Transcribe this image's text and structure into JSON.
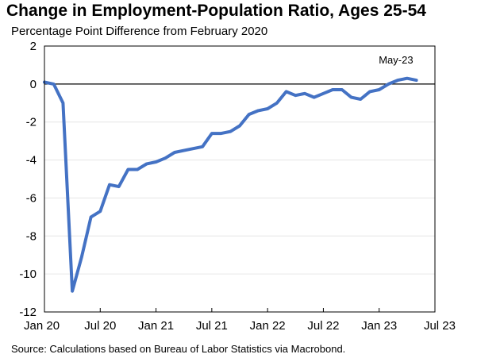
{
  "chart_data": {
    "type": "line",
    "title": "Change in Employment-Population Ratio, Ages 25-54",
    "subtitle": "Percentage Point Difference from February 2020",
    "source": "Source: Calculations based on Bureau of Labor Statistics via Macrobond.",
    "annotation": "May-23",
    "ylim": [
      -12,
      2
    ],
    "yticks": [
      "2",
      "0",
      "-2",
      "-4",
      "-6",
      "-8",
      "-10",
      "-12"
    ],
    "xticks": [
      "Jan 20",
      "Jul 20",
      "Jan 21",
      "Jul 21",
      "Jan 22",
      "Jul 22",
      "Jan 23",
      "Jul 23"
    ],
    "x_start": "2020-01",
    "x_end": "2023-07",
    "grid": true,
    "line_color": "#4472C4",
    "x": [
      "2020-01",
      "2020-02",
      "2020-03",
      "2020-04",
      "2020-05",
      "2020-06",
      "2020-07",
      "2020-08",
      "2020-09",
      "2020-10",
      "2020-11",
      "2020-12",
      "2021-01",
      "2021-02",
      "2021-03",
      "2021-04",
      "2021-05",
      "2021-06",
      "2021-07",
      "2021-08",
      "2021-09",
      "2021-10",
      "2021-11",
      "2021-12",
      "2022-01",
      "2022-02",
      "2022-03",
      "2022-04",
      "2022-05",
      "2022-06",
      "2022-07",
      "2022-08",
      "2022-09",
      "2022-10",
      "2022-11",
      "2022-12",
      "2023-01",
      "2023-02",
      "2023-03",
      "2023-04",
      "2023-05"
    ],
    "values": [
      0.1,
      0.0,
      -1.0,
      -10.9,
      -9.1,
      -7.0,
      -6.7,
      -5.3,
      -5.4,
      -4.5,
      -4.5,
      -4.2,
      -4.1,
      -3.9,
      -3.6,
      -3.5,
      -3.4,
      -3.3,
      -2.6,
      -2.6,
      -2.5,
      -2.2,
      -1.6,
      -1.4,
      -1.3,
      -1.0,
      -0.4,
      -0.6,
      -0.5,
      -0.7,
      -0.5,
      -0.3,
      -0.3,
      -0.7,
      -0.8,
      -0.4,
      -0.3,
      0.0,
      0.2,
      0.3,
      0.2
    ]
  }
}
